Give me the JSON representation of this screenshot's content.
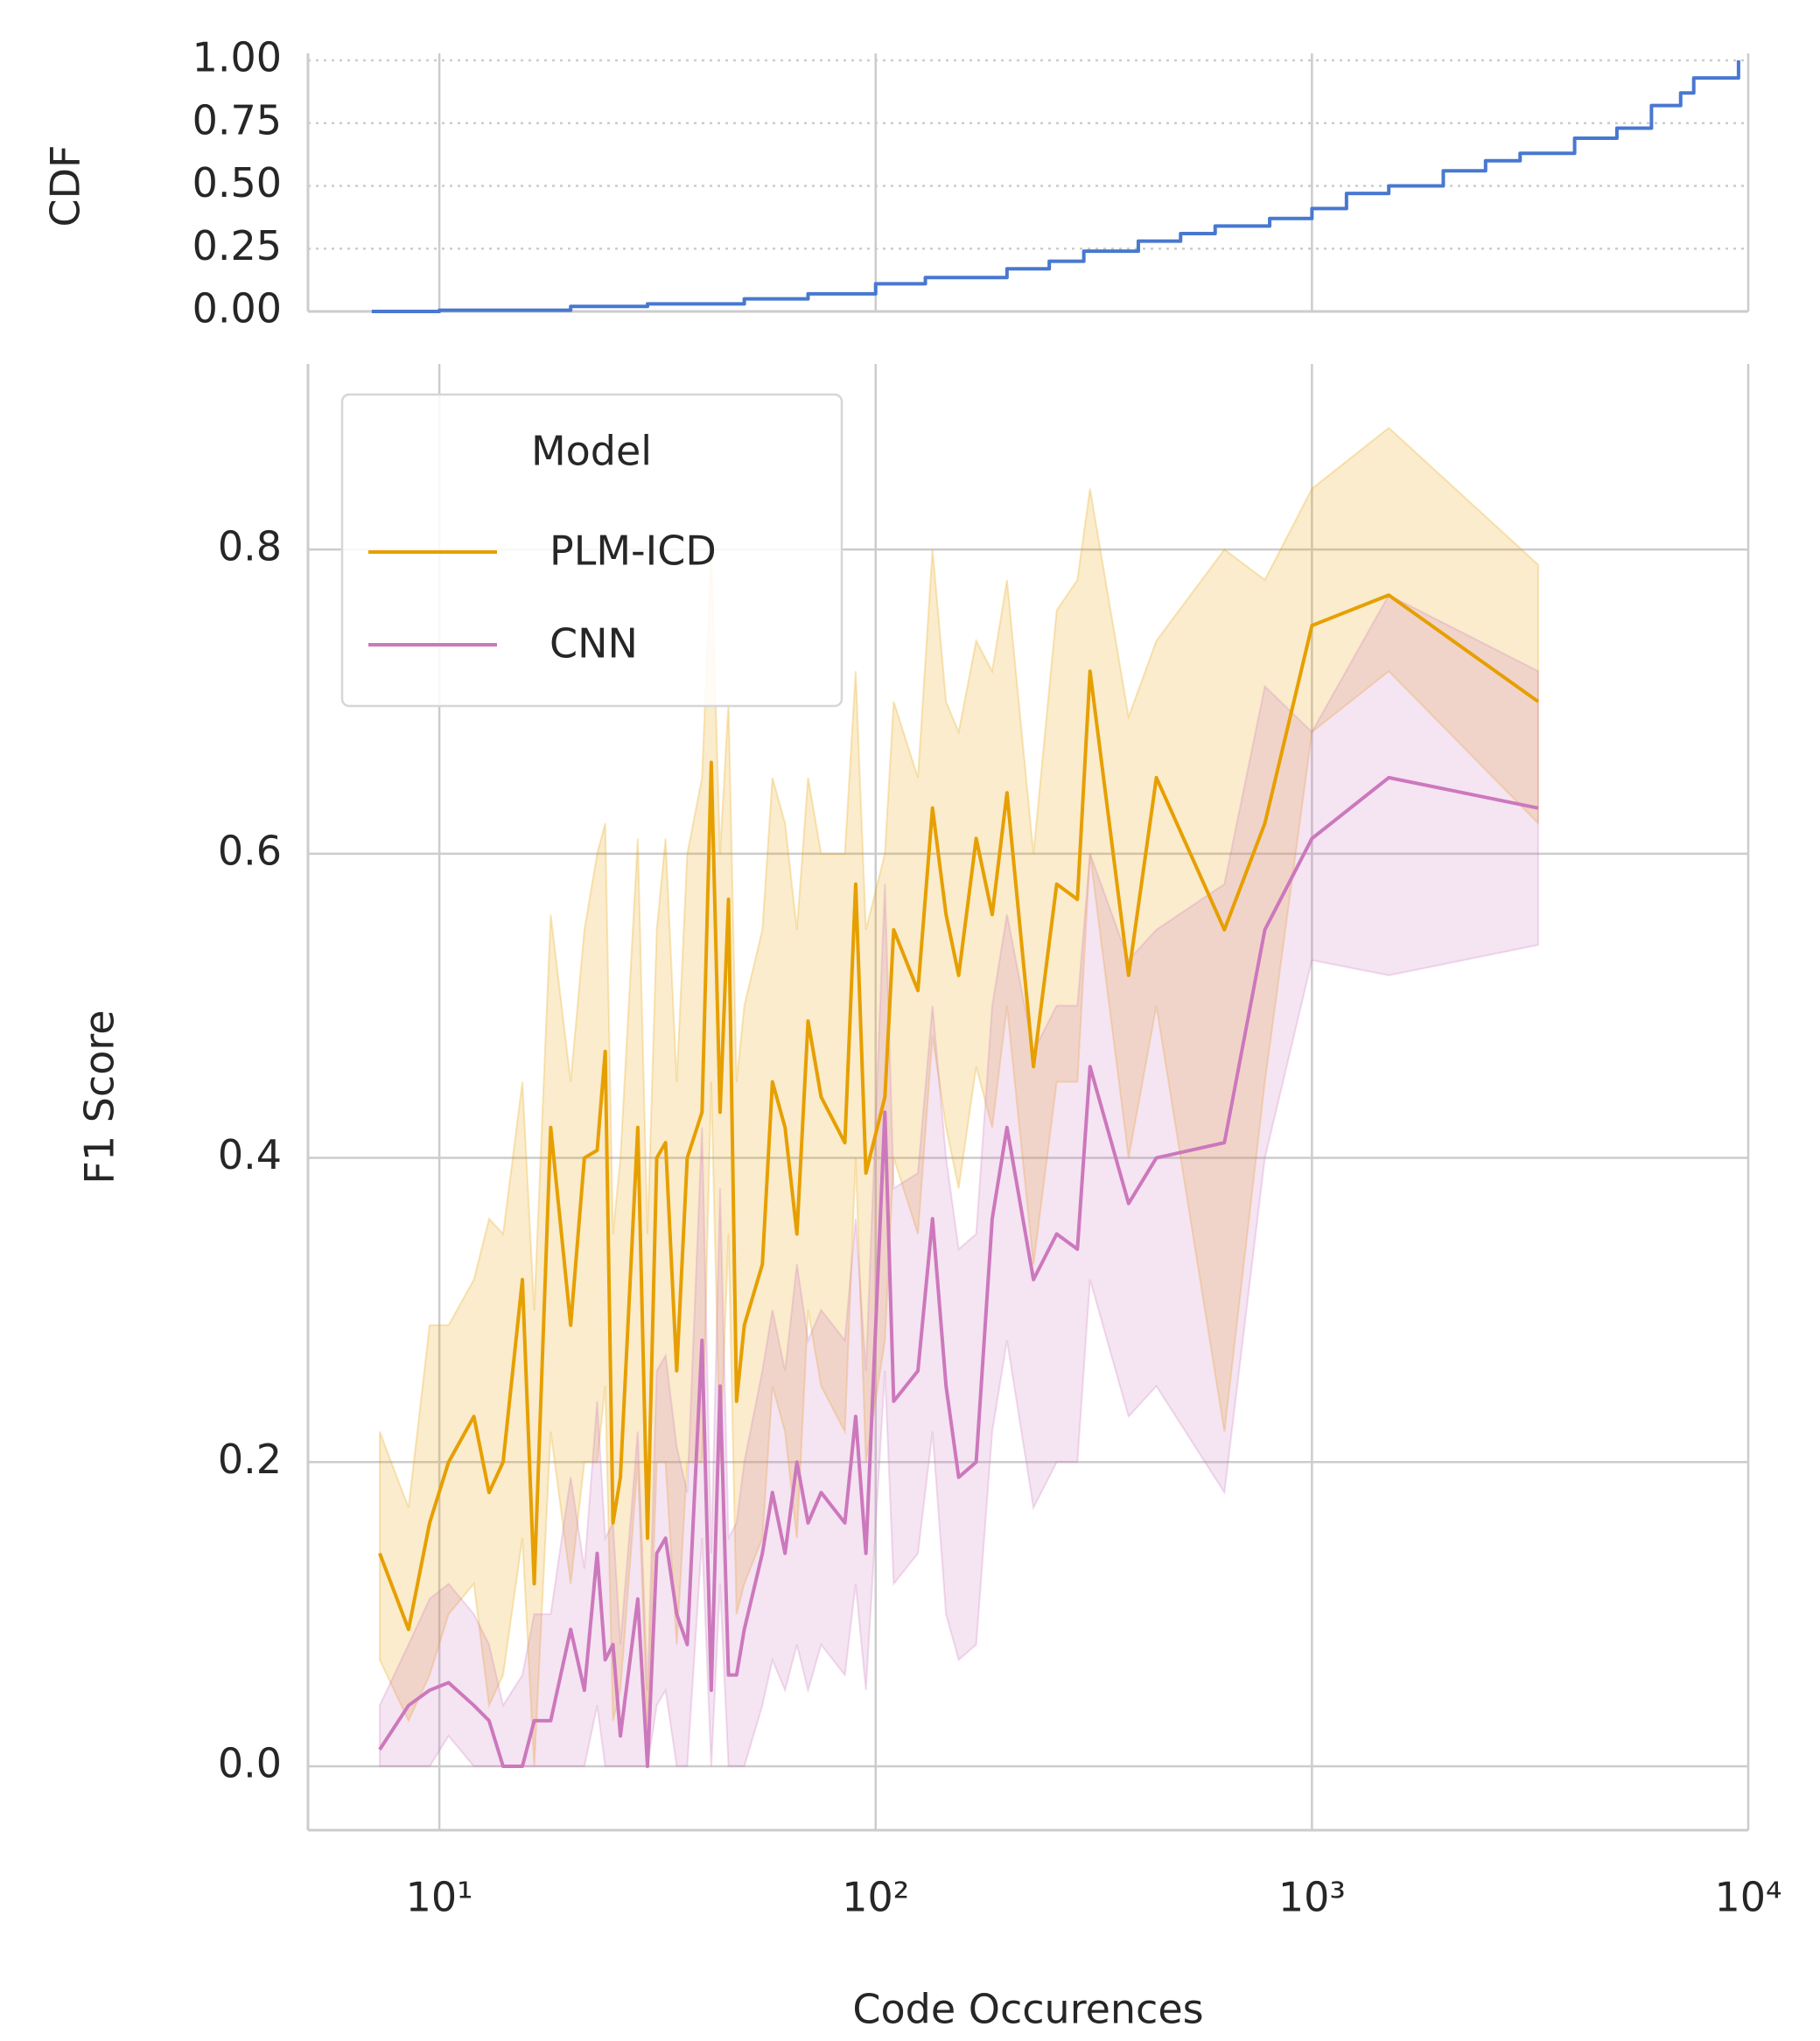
{
  "chart_data": [
    {
      "type": "line",
      "drawstyle": "steps-post",
      "ylabel": "CDF",
      "xscale": "log",
      "x": [
        7,
        10,
        20,
        30,
        50,
        70,
        100,
        130,
        200,
        250,
        300,
        400,
        500,
        600,
        800,
        1000,
        1200,
        1500,
        2000,
        2500,
        3000,
        4000,
        5000,
        6000,
        7000,
        7500,
        9500,
        9500
      ],
      "series": [
        {
          "name": "CDF",
          "color": "#4878d0",
          "values": [
            0,
            0.005,
            0.02,
            0.03,
            0.05,
            0.07,
            0.11,
            0.135,
            0.17,
            0.2,
            0.24,
            0.28,
            0.31,
            0.34,
            0.37,
            0.41,
            0.47,
            0.5,
            0.56,
            0.6,
            0.63,
            0.69,
            0.73,
            0.82,
            0.87,
            0.93,
            0.95,
            1.0
          ]
        }
      ],
      "xlim": [
        5,
        10000
      ],
      "xticks": [
        10,
        100,
        1000,
        10000
      ],
      "ylim": [
        0,
        1
      ],
      "yticks": [
        {
          "value": 0,
          "label": "0.00"
        },
        {
          "value": 0.25,
          "label": "0.25"
        },
        {
          "value": 0.5,
          "label": "0.50"
        },
        {
          "value": 0.75,
          "label": "0.75"
        },
        {
          "value": 1,
          "label": "1.00"
        }
      ],
      "grid": true
    },
    {
      "type": "line",
      "xlabel": "Code Occurences",
      "ylabel": "F1 Score",
      "xscale": "log",
      "x": [
        7.3,
        8.5,
        9.5,
        10.5,
        12,
        13,
        14,
        15.5,
        16.5,
        18,
        20,
        21.5,
        23,
        24,
        25,
        26,
        28.5,
        30,
        31.5,
        33,
        35,
        37,
        40,
        42,
        44,
        46,
        48,
        50,
        55,
        58,
        62,
        66,
        70,
        75,
        85,
        90,
        95,
        105,
        110,
        125,
        135,
        145,
        155,
        170,
        185,
        200,
        230,
        260,
        290,
        310,
        380,
        440,
        630,
        780,
        1000,
        1500,
        3300
      ],
      "series": [
        {
          "name": "PLM-ICD",
          "color": "#e69f00",
          "values": [
            0.14,
            0.09,
            0.16,
            0.2,
            0.23,
            0.18,
            0.2,
            0.32,
            0.12,
            0.42,
            0.29,
            0.4,
            0.405,
            0.47,
            0.16,
            0.19,
            0.42,
            0.15,
            0.4,
            0.41,
            0.26,
            0.4,
            0.43,
            0.66,
            0.43,
            0.57,
            0.24,
            0.29,
            0.33,
            0.45,
            0.42,
            0.35,
            0.49,
            0.44,
            0.41,
            0.58,
            0.39,
            0.44,
            0.55,
            0.51,
            0.63,
            0.56,
            0.52,
            0.61,
            0.56,
            0.64,
            0.46,
            0.58,
            0.57,
            0.72,
            0.52,
            0.65,
            0.55,
            0.62,
            0.75,
            0.77,
            0.7
          ],
          "lower": [
            0.07,
            0.03,
            0.06,
            0.1,
            0.12,
            0.04,
            0.06,
            0.15,
            0.0,
            0.22,
            0.12,
            0.2,
            0.2,
            0.25,
            0.03,
            0.05,
            0.2,
            0.02,
            0.2,
            0.2,
            0.08,
            0.2,
            0.2,
            0.45,
            0.2,
            0.35,
            0.1,
            0.12,
            0.15,
            0.25,
            0.22,
            0.15,
            0.3,
            0.25,
            0.22,
            0.4,
            0.2,
            0.28,
            0.4,
            0.35,
            0.48,
            0.42,
            0.38,
            0.46,
            0.42,
            0.5,
            0.33,
            0.45,
            0.45,
            0.6,
            0.4,
            0.5,
            0.22,
            0.45,
            0.68,
            0.72,
            0.62
          ],
          "upper": [
            0.22,
            0.17,
            0.29,
            0.29,
            0.32,
            0.36,
            0.35,
            0.45,
            0.3,
            0.56,
            0.45,
            0.55,
            0.6,
            0.62,
            0.35,
            0.4,
            0.61,
            0.35,
            0.55,
            0.61,
            0.45,
            0.6,
            0.65,
            0.8,
            0.6,
            0.7,
            0.45,
            0.5,
            0.55,
            0.65,
            0.62,
            0.55,
            0.65,
            0.6,
            0.6,
            0.72,
            0.55,
            0.6,
            0.7,
            0.65,
            0.8,
            0.7,
            0.68,
            0.74,
            0.72,
            0.78,
            0.6,
            0.76,
            0.78,
            0.84,
            0.69,
            0.74,
            0.8,
            0.78,
            0.84,
            0.88,
            0.79
          ]
        },
        {
          "name": "CNN",
          "color": "#cc78bc",
          "values": [
            0.011,
            0.04,
            0.05,
            0.055,
            0.04,
            0.03,
            0.0,
            0.0,
            0.03,
            0.03,
            0.09,
            0.05,
            0.14,
            0.07,
            0.08,
            0.02,
            0.11,
            0.0,
            0.14,
            0.15,
            0.1,
            0.08,
            0.28,
            0.05,
            0.25,
            0.06,
            0.06,
            0.09,
            0.14,
            0.18,
            0.14,
            0.2,
            0.16,
            0.18,
            0.16,
            0.23,
            0.14,
            0.43,
            0.24,
            0.26,
            0.36,
            0.25,
            0.19,
            0.2,
            0.36,
            0.42,
            0.32,
            0.35,
            0.34,
            0.46,
            0.37,
            0.4,
            0.41,
            0.55,
            0.61,
            0.65,
            0.63
          ],
          "lower": [
            0.0,
            0.0,
            0.0,
            0.02,
            0.0,
            0.0,
            0.0,
            0.0,
            0.0,
            0.0,
            0.0,
            0.0,
            0.04,
            0.0,
            0.0,
            0.0,
            0.0,
            0.0,
            0.04,
            0.05,
            0.0,
            0.0,
            0.15,
            0.0,
            0.12,
            0.0,
            0.0,
            0.0,
            0.04,
            0.07,
            0.05,
            0.08,
            0.05,
            0.08,
            0.06,
            0.12,
            0.05,
            0.26,
            0.12,
            0.14,
            0.22,
            0.1,
            0.07,
            0.08,
            0.22,
            0.28,
            0.17,
            0.2,
            0.2,
            0.32,
            0.23,
            0.25,
            0.18,
            0.4,
            0.53,
            0.52,
            0.54
          ],
          "upper": [
            0.04,
            0.08,
            0.11,
            0.12,
            0.1,
            0.08,
            0.04,
            0.06,
            0.1,
            0.1,
            0.19,
            0.13,
            0.24,
            0.15,
            0.16,
            0.08,
            0.22,
            0.05,
            0.26,
            0.27,
            0.21,
            0.18,
            0.42,
            0.14,
            0.38,
            0.15,
            0.16,
            0.2,
            0.26,
            0.3,
            0.26,
            0.33,
            0.28,
            0.3,
            0.28,
            0.36,
            0.26,
            0.58,
            0.38,
            0.39,
            0.5,
            0.4,
            0.34,
            0.35,
            0.5,
            0.56,
            0.47,
            0.5,
            0.5,
            0.6,
            0.53,
            0.55,
            0.58,
            0.71,
            0.68,
            0.77,
            0.72
          ]
        }
      ],
      "xlim": [
        5,
        10000
      ],
      "xticks": [
        {
          "value": 10,
          "label": "10¹"
        },
        {
          "value": 100,
          "label": "10²"
        },
        {
          "value": 1000,
          "label": "10³"
        },
        {
          "value": 10000,
          "label": "10⁴"
        }
      ],
      "ylim": [
        -0.042,
        0.922
      ],
      "yticks": [
        {
          "value": 0,
          "label": "0.0"
        },
        {
          "value": 0.2,
          "label": "0.2"
        },
        {
          "value": 0.4,
          "label": "0.4"
        },
        {
          "value": 0.6,
          "label": "0.6"
        },
        {
          "value": 0.8,
          "label": "0.8"
        }
      ],
      "grid": true,
      "legend": {
        "title": "Model",
        "loc": "upper left"
      }
    }
  ]
}
